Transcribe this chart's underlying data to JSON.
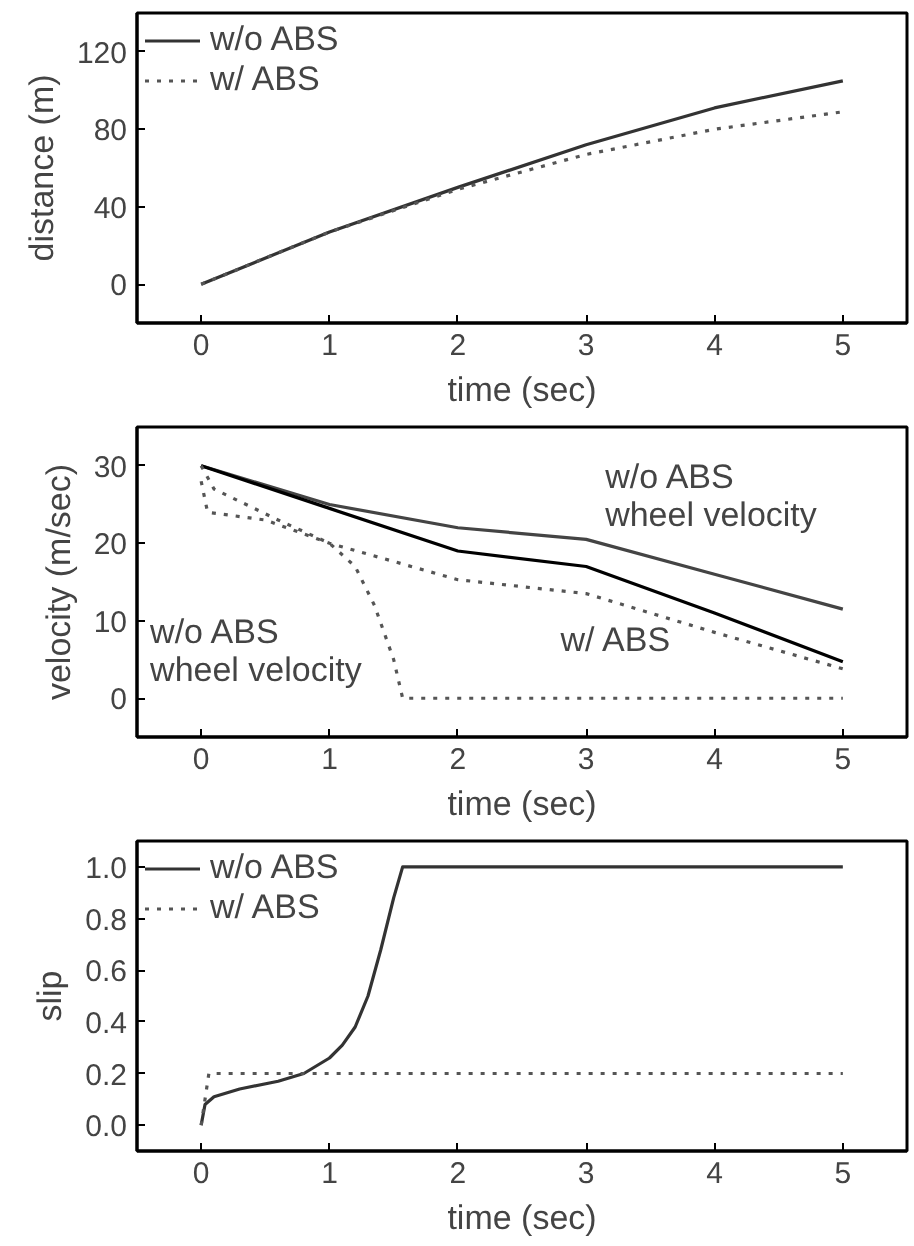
{
  "chart_data": [
    {
      "type": "line",
      "xlabel": "time (sec)",
      "ylabel": "distance (m)",
      "x": [
        0,
        1,
        2,
        3,
        4,
        5
      ],
      "xlim": [
        -0.5,
        5.5
      ],
      "xticks": [
        0,
        1,
        2,
        3,
        4,
        5
      ],
      "ylim": [
        -20,
        140
      ],
      "yticks": [
        0,
        40,
        80,
        120
      ],
      "legend": "top left",
      "grid": false,
      "series": [
        {
          "name": "w/o ABS",
          "color": "#333333",
          "line_style": "solid",
          "values": [
            0,
            27,
            50,
            72,
            91,
            105
          ]
        },
        {
          "name": "w/ ABS",
          "color": "#555555",
          "line_style": "dotted",
          "values": [
            0,
            27,
            49,
            67,
            80,
            89
          ]
        }
      ]
    },
    {
      "type": "line",
      "xlabel": "time (sec)",
      "ylabel": "velocity (m/sec)",
      "xlim": [
        -0.5,
        5.5
      ],
      "xticks": [
        0,
        1,
        2,
        3,
        4,
        5
      ],
      "ylim": [
        -5,
        35
      ],
      "yticks": [
        0,
        10,
        20,
        30
      ],
      "legend": false,
      "grid": false,
      "annotations": [
        "w/o ABS\nwheel velocity",
        "w/o ABS\nwheel velocity",
        "w/ ABS"
      ],
      "series": [
        {
          "color": "#444444",
          "line_style": "solid",
          "x": [
            0,
            1,
            2,
            3,
            4,
            5
          ],
          "values": [
            30,
            25,
            22,
            20.5,
            16,
            11.5
          ]
        },
        {
          "color": "#000000",
          "line_style": "solid",
          "x": [
            0,
            1,
            2,
            3,
            4,
            5
          ],
          "values": [
            30,
            24.5,
            19,
            17,
            11,
            4.7
          ]
        },
        {
          "color": "#555555",
          "line_style": "dotted",
          "x": [
            0,
            0.1,
            0.6,
            1.0,
            1.2,
            1.35,
            1.5,
            1.57,
            5
          ],
          "values": [
            30,
            27,
            23,
            20,
            17,
            12,
            5,
            0,
            0
          ]
        },
        {
          "color": "#555555",
          "line_style": "dotted",
          "x": [
            0,
            0.05,
            0.5,
            1,
            2,
            3,
            4,
            5
          ],
          "values": [
            28,
            24,
            23,
            20,
            15.3,
            13.5,
            8.5,
            3.8
          ]
        }
      ]
    },
    {
      "type": "line",
      "xlabel": "time (sec)",
      "ylabel": "slip",
      "xlim": [
        -0.5,
        5.5
      ],
      "xticks": [
        0,
        1,
        2,
        3,
        4,
        5
      ],
      "ylim": [
        -0.1,
        1.1
      ],
      "yticks": [
        {
          "value": 0,
          "label": "0.0"
        },
        {
          "value": 0.2,
          "label": "0.2"
        },
        {
          "value": 0.4,
          "label": "0.4"
        },
        {
          "value": 0.6,
          "label": "0.6"
        },
        {
          "value": 0.8,
          "label": "0.8"
        },
        {
          "value": 1,
          "label": "1.0"
        }
      ],
      "legend": "top left",
      "grid": false,
      "series": [
        {
          "name": "w/o ABS",
          "color": "#333333",
          "line_style": "solid",
          "x": [
            0,
            0.03,
            0.1,
            0.3,
            0.6,
            0.8,
            1.0,
            1.1,
            1.2,
            1.3,
            1.4,
            1.5,
            1.57,
            5
          ],
          "values": [
            0,
            0.08,
            0.11,
            0.14,
            0.17,
            0.2,
            0.26,
            0.31,
            0.38,
            0.5,
            0.68,
            0.88,
            1.0,
            1.0
          ]
        },
        {
          "name": "w/ ABS",
          "color": "#555555",
          "line_style": "dotted",
          "x": [
            0,
            0.06,
            5
          ],
          "values": [
            0,
            0.2,
            0.2
          ]
        }
      ]
    }
  ]
}
